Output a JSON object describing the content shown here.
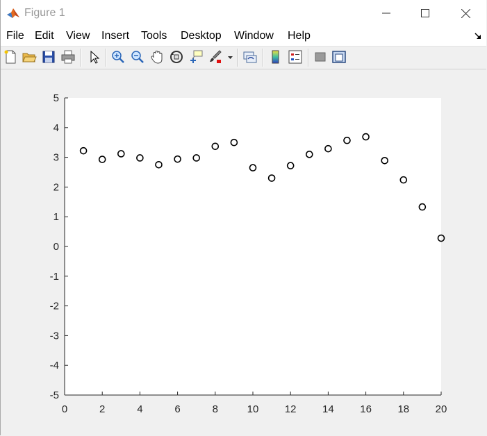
{
  "window": {
    "title": "Figure 1",
    "icon": "matlab-icon",
    "controls": [
      "minimize-icon",
      "maximize-icon",
      "close-icon"
    ]
  },
  "menu": {
    "items": [
      {
        "label": "File"
      },
      {
        "label": "Edit"
      },
      {
        "label": "View"
      },
      {
        "label": "Insert"
      },
      {
        "label": "Tools"
      },
      {
        "label": "Desktop"
      },
      {
        "label": "Window"
      },
      {
        "label": "Help"
      }
    ]
  },
  "toolbar": {
    "buttons": [
      "new-figure-icon",
      "open-file-icon",
      "save-icon",
      "print-icon",
      "edit-plot-icon",
      "zoom-in-icon",
      "zoom-out-icon",
      "pan-icon",
      "rotate-3d-icon",
      "data-cursor-icon",
      "brush-icon",
      "link-plot-icon",
      "colorbar-icon",
      "legend-icon",
      "hide-plot-tools-icon",
      "show-plot-tools-icon"
    ]
  },
  "chart_data": {
    "type": "scatter",
    "marker": "circle",
    "marker_color": "#000000",
    "x": [
      1,
      2,
      3,
      4,
      5,
      6,
      7,
      8,
      9,
      10,
      11,
      12,
      13,
      14,
      15,
      16,
      17,
      18,
      19,
      20
    ],
    "y": [
      3.22,
      2.93,
      3.12,
      2.98,
      2.75,
      2.94,
      2.98,
      3.37,
      3.5,
      2.65,
      2.3,
      2.72,
      3.1,
      3.29,
      3.57,
      3.69,
      2.89,
      2.24,
      1.33,
      0.28
    ],
    "xlim": [
      0,
      20
    ],
    "ylim": [
      -5,
      5
    ],
    "xticks": [
      "0",
      "2",
      "4",
      "6",
      "8",
      "10",
      "12",
      "14",
      "16",
      "18",
      "20"
    ],
    "yticks": [
      "5",
      "4",
      "3",
      "2",
      "1",
      "0",
      "-1",
      "-2",
      "-3",
      "-4",
      "-5"
    ],
    "grid": false
  }
}
